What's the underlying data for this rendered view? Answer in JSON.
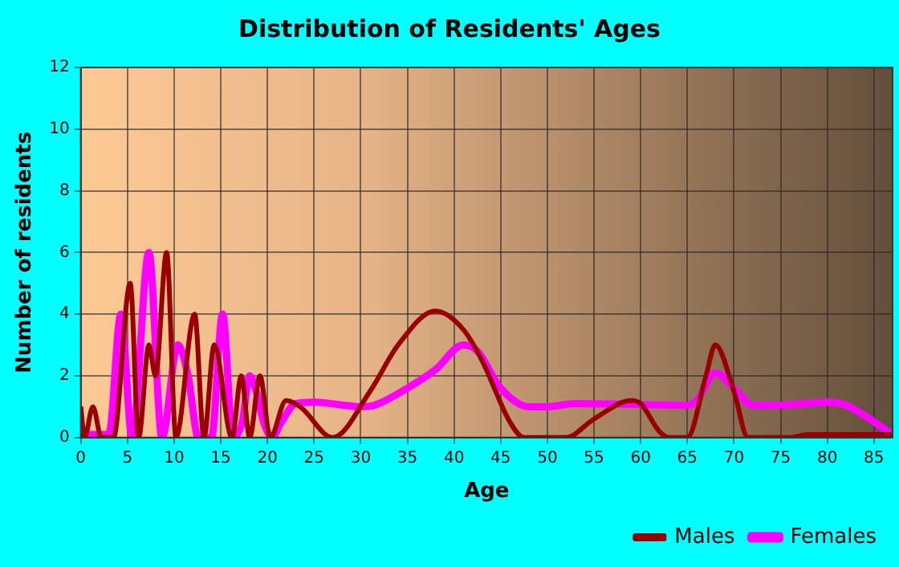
{
  "chart_data": {
    "type": "line",
    "title": "Distribution of Residents' Ages",
    "xlabel": "Age",
    "ylabel": "Number of residents",
    "xlim": [
      0,
      87
    ],
    "xticks": [
      0,
      5,
      10,
      15,
      20,
      25,
      30,
      35,
      40,
      45,
      50,
      55,
      60,
      65,
      70,
      75,
      80,
      85
    ],
    "ylim": [
      0,
      12
    ],
    "yticks": [
      0,
      2,
      4,
      6,
      8,
      10,
      12
    ],
    "grid": true,
    "legend": "bottom right",
    "marker": "none",
    "line_style": "solid",
    "series": [
      {
        "name": "Males",
        "color": "#990000",
        "x": [
          0,
          0.4,
          1.3,
          2.2,
          3.5,
          5.3,
          6.2,
          7.3,
          8,
          9.2,
          10.2,
          12.2,
          13.2,
          14.3,
          16.2,
          17.2,
          18.1,
          19.2,
          20.3,
          22,
          23.5,
          27,
          31,
          34,
          38,
          41,
          43,
          46,
          47.5,
          52,
          55,
          59,
          60,
          62,
          63,
          65,
          67,
          68,
          70,
          71.5,
          76,
          78,
          87
        ],
        "values": [
          1,
          0,
          1,
          0,
          0,
          5,
          0,
          3,
          2,
          6,
          0,
          4,
          0,
          3,
          0,
          2,
          0,
          2,
          0,
          1.2,
          1,
          0,
          1.5,
          3,
          4.1,
          3.5,
          2.5,
          0.5,
          0,
          0,
          0.6,
          1.2,
          1.1,
          0.2,
          0,
          0,
          2,
          3,
          1.5,
          0,
          0,
          0.1,
          0.1
        ]
      },
      {
        "name": "Females",
        "color": "#ff00ff",
        "x": [
          0,
          3,
          4.3,
          5.5,
          7.3,
          8.7,
          10.4,
          11.5,
          12.6,
          14,
          15.2,
          16.3,
          17.3,
          18.1,
          18.8,
          19.6,
          20.5,
          21.5,
          23,
          25,
          30,
          31.5,
          35,
          38,
          41,
          42.5,
          45,
          48,
          50,
          53,
          65,
          66,
          68,
          70,
          72,
          75,
          80,
          82,
          87
        ],
        "values": [
          0.1,
          0.1,
          4,
          0,
          6,
          0,
          3,
          2,
          0,
          0,
          4,
          0,
          0.5,
          2,
          1.5,
          0.5,
          0,
          0.5,
          1.1,
          1.15,
          1,
          1.05,
          1.6,
          2.2,
          3,
          2.8,
          1.6,
          1,
          1,
          1.1,
          1.05,
          1.2,
          2.1,
          1.6,
          1.05,
          1.05,
          1.15,
          1.05,
          0.1
        ]
      }
    ]
  }
}
